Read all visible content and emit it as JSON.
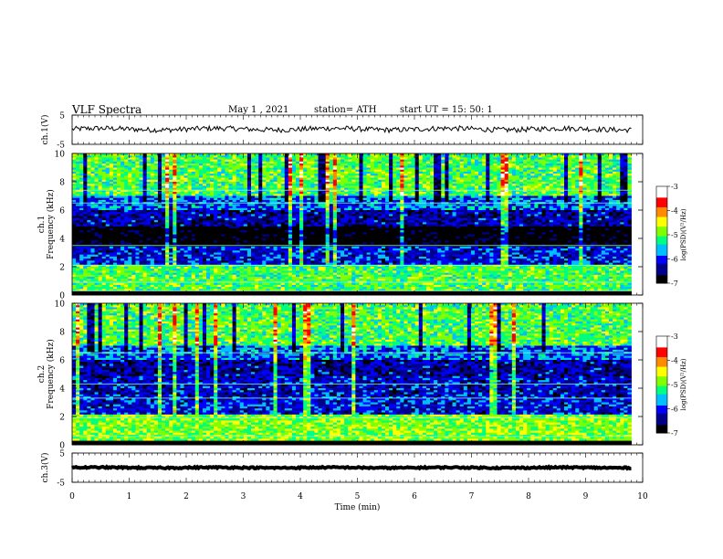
{
  "header": {
    "title": "VLF  Spectra",
    "date": "May 1  , 2021",
    "station": "station= ATH",
    "start": "start  UT  =    15: 50: 1"
  },
  "chart_data": [
    {
      "type": "line",
      "ylabel": "ch.1(V)",
      "xlim": [
        0,
        10
      ],
      "ylim": [
        -5,
        5
      ],
      "y_ticks": [
        "5",
        "-5"
      ],
      "trace": {
        "baseline": 0.2,
        "amplitude": 0.9,
        "color": "#000000"
      }
    },
    {
      "type": "heatmap",
      "ylabel": "ch.1\nFrequency  (kHz)",
      "xlim": [
        0,
        10
      ],
      "ylim": [
        0,
        10
      ],
      "y_ticks": [
        "0",
        "2",
        "4",
        "6",
        "8",
        "10"
      ],
      "colorbar": {
        "label": "log(PSD)(V²/Hz)",
        "range": [
          -7,
          -3
        ],
        "ticks": [
          "-3",
          "-4",
          "-5",
          "-6",
          "-7"
        ]
      },
      "data_extent_min": 9.8
    },
    {
      "type": "heatmap",
      "ylabel": "ch.2\nFrequency  (kHz)",
      "xlim": [
        0,
        10
      ],
      "ylim": [
        0,
        10
      ],
      "y_ticks": [
        "0",
        "2",
        "4",
        "6",
        "8",
        "10"
      ],
      "colorbar": {
        "label": "log(PSD)(V²/Hz)",
        "range": [
          -7,
          -3
        ],
        "ticks": [
          "-3",
          "-4",
          "-5",
          "-6",
          "-7"
        ]
      },
      "data_extent_min": 9.8
    },
    {
      "type": "line",
      "ylabel": "ch.3(V)",
      "xlim": [
        0,
        10
      ],
      "ylim": [
        -5,
        5
      ],
      "y_ticks": [
        "5",
        "-5"
      ],
      "trace": {
        "baseline": 0.0,
        "amplitude": 0.25,
        "color": "#000000"
      }
    }
  ],
  "x_axis": {
    "label": "Time  (min)",
    "ticks": [
      "0",
      "1",
      "2",
      "3",
      "4",
      "5",
      "6",
      "7",
      "8",
      "9",
      "10"
    ]
  },
  "colormap": [
    "#000000",
    "#00008b",
    "#0000ff",
    "#00bfff",
    "#00ff7f",
    "#7fff00",
    "#ffff00",
    "#ff8c00",
    "#ff0000",
    "#ffffff"
  ]
}
